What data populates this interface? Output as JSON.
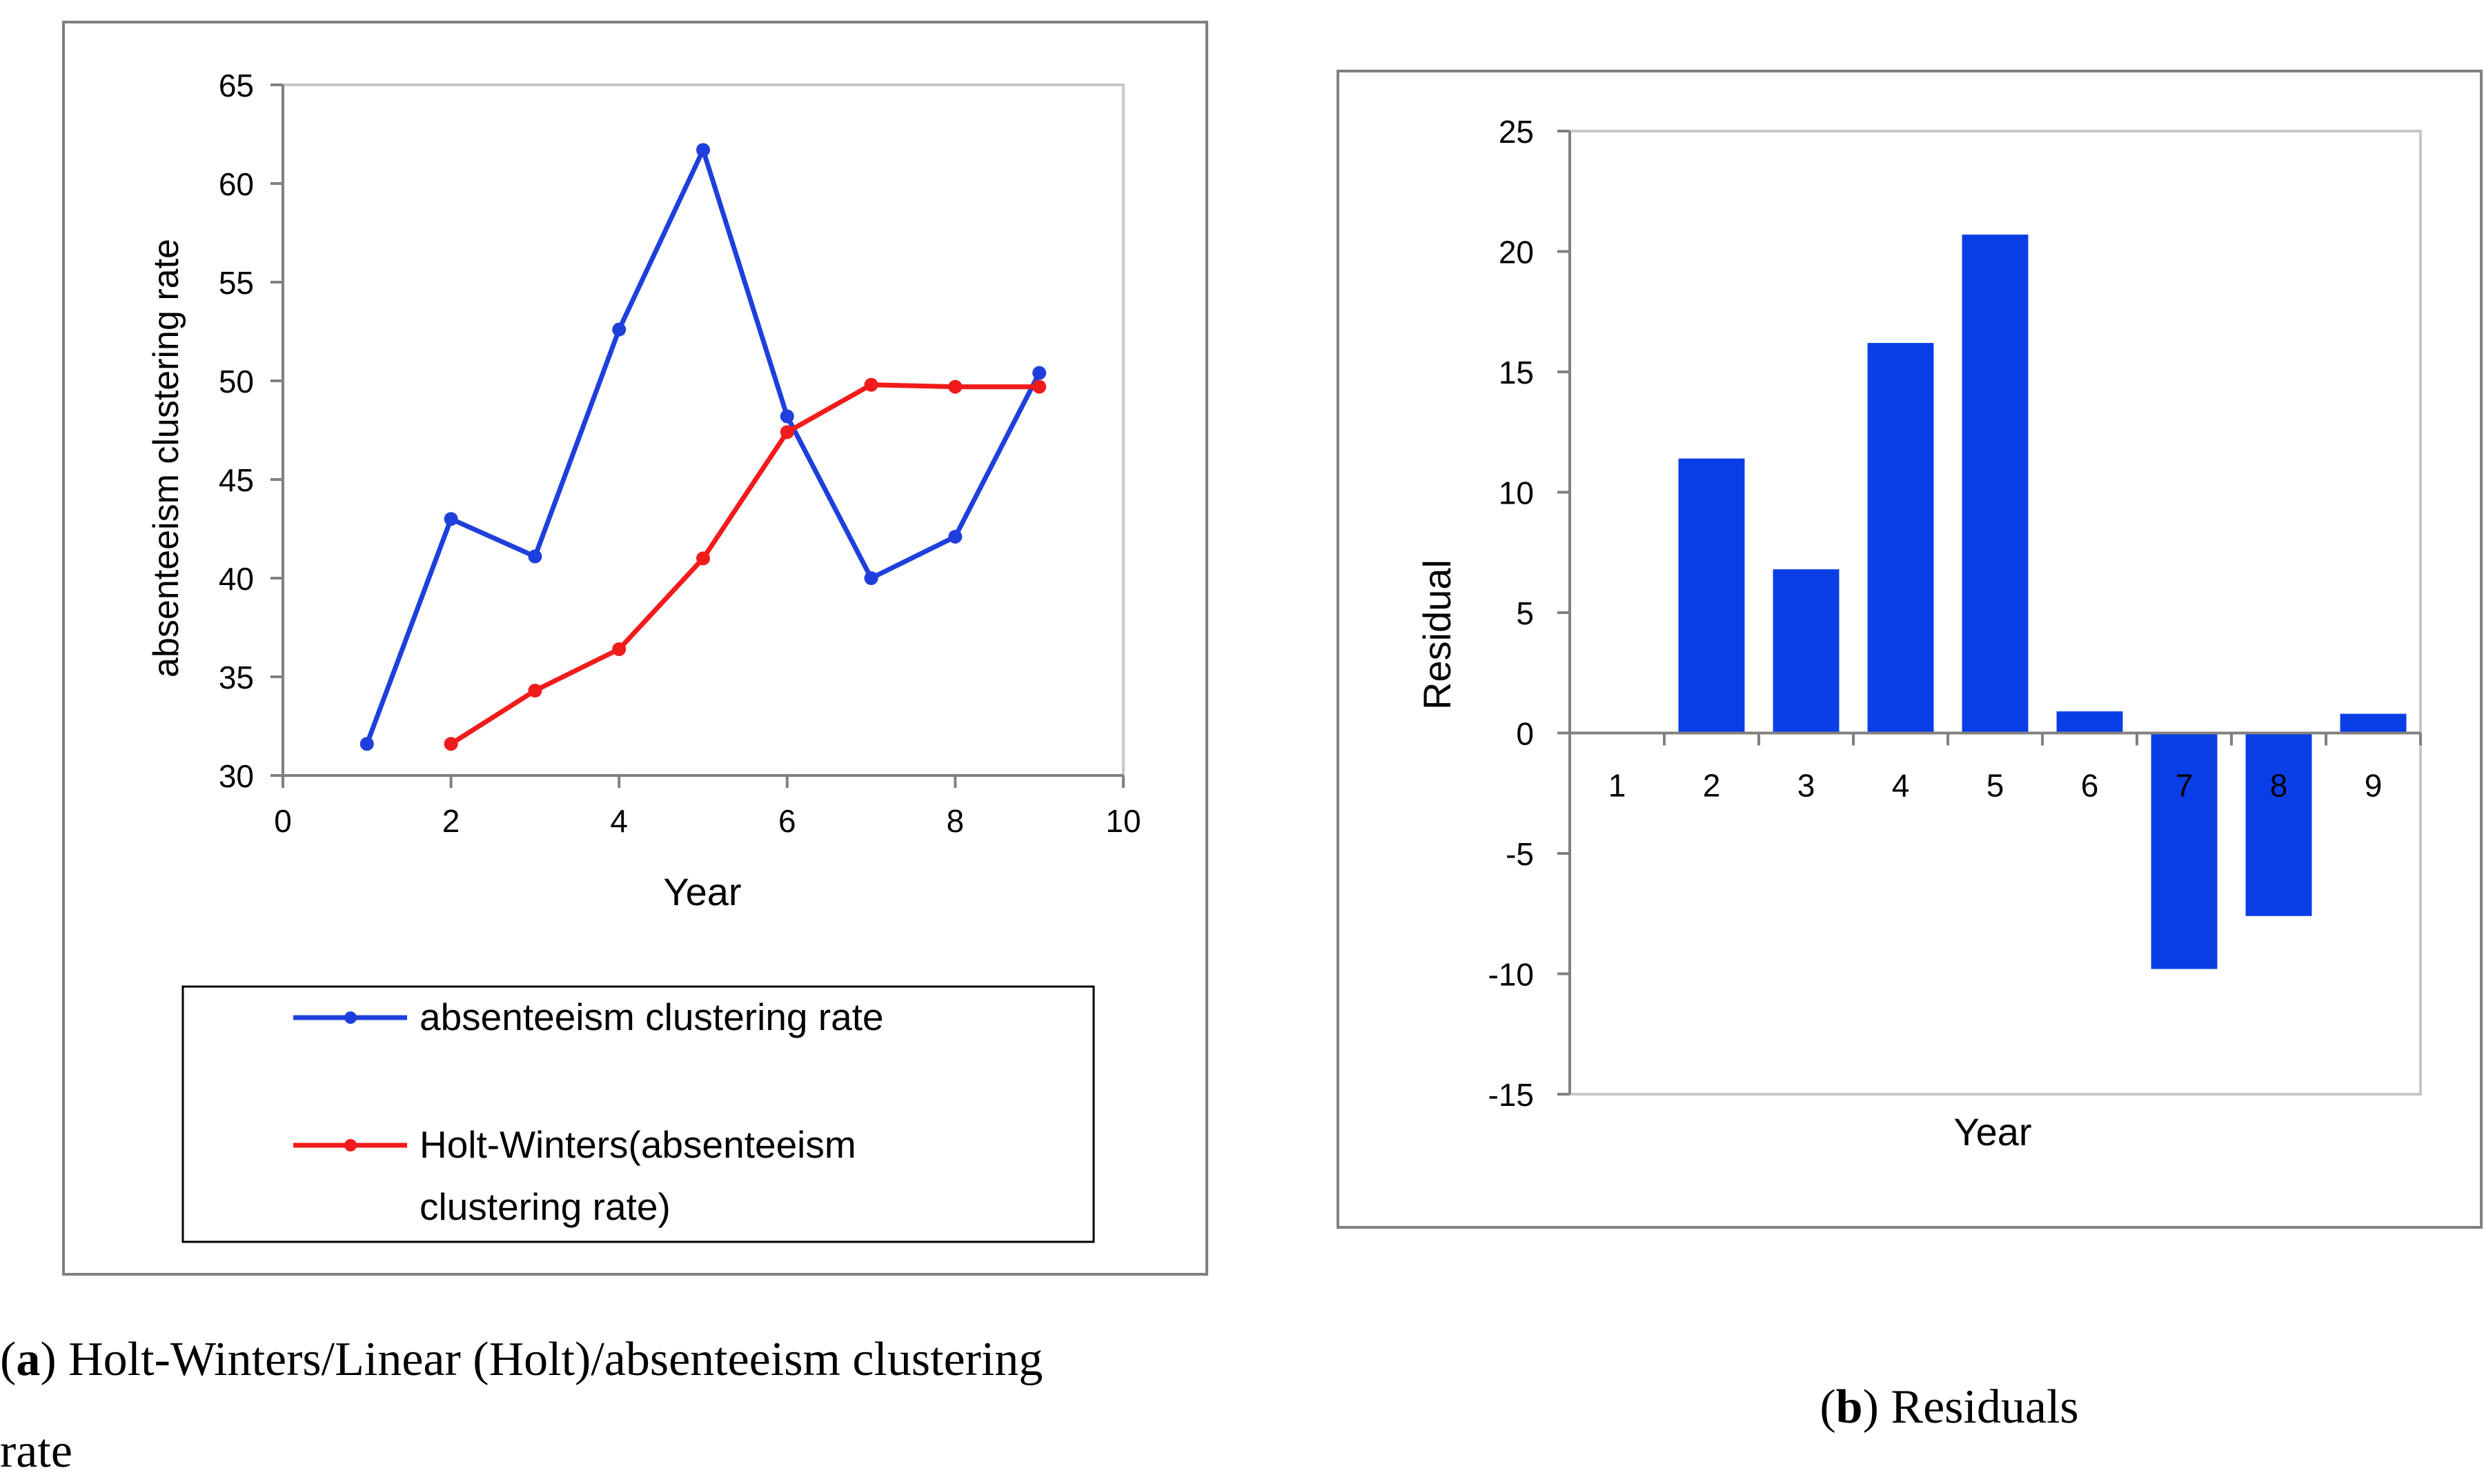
{
  "chart_data": [
    {
      "type": "line",
      "xlabel": "Year",
      "ylabel": "absenteeism clustering rate",
      "xlim": [
        0,
        10
      ],
      "ylim": [
        30,
        65
      ],
      "x_ticks": [
        "0",
        "2",
        "4",
        "6",
        "8",
        "10"
      ],
      "y_ticks": [
        "30",
        "35",
        "40",
        "45",
        "50",
        "55",
        "60",
        "65"
      ],
      "series": [
        {
          "name": "absenteeism clustering rate",
          "color": "#1f3fdc",
          "x": [
            1,
            2,
            3,
            4,
            5,
            6,
            7,
            8,
            9
          ],
          "values": [
            31.6,
            43.0,
            41.1,
            52.6,
            61.7,
            48.2,
            40.0,
            42.1,
            50.4
          ]
        },
        {
          "name": "Holt-Winters(absenteeism clustering rate)",
          "legend_lines": [
            "Holt-Winters(absenteeism",
            "clustering rate)"
          ],
          "color": "#f21b1b",
          "x": [
            2,
            3,
            4,
            5,
            6,
            7,
            8,
            9
          ],
          "values": [
            31.6,
            34.3,
            36.4,
            41.0,
            47.4,
            49.8,
            49.7,
            49.7
          ]
        }
      ],
      "caption_bold": "a",
      "caption_lines": [
        ") Holt-Winters/Linear (Holt)/absenteeism clustering",
        "rate"
      ]
    },
    {
      "type": "bar",
      "xlabel": "Year",
      "ylabel": "Residual",
      "ylim": [
        -15,
        25
      ],
      "y_ticks": [
        "25",
        "20",
        "15",
        "10",
        "5",
        "0",
        "-5",
        "-10",
        "-15"
      ],
      "categories": [
        "1",
        "2",
        "3",
        "4",
        "5",
        "6",
        "7",
        "8",
        "9"
      ],
      "values": [
        0,
        11.4,
        6.8,
        16.2,
        20.7,
        0.9,
        -9.8,
        -7.6,
        0.8
      ],
      "color": "#0a3ee6",
      "caption_bold": "b",
      "caption_text": ") Residuals"
    }
  ]
}
